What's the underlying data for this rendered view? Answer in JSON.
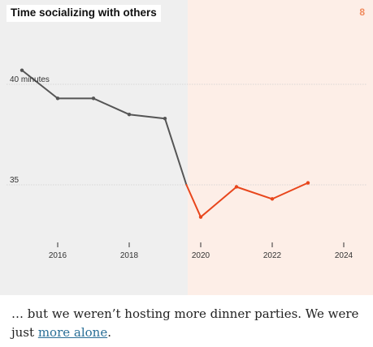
{
  "page_number": "8",
  "chart_data": {
    "type": "line",
    "title": "Time socializing with others",
    "x_ticks": [
      "2016",
      "2018",
      "2020",
      "2022",
      "2024"
    ],
    "y_ticks": [
      {
        "value": 40,
        "label": "40 minutes"
      },
      {
        "value": 35,
        "label": "35"
      }
    ],
    "xlim": [
      2015,
      2025
    ],
    "ylim": [
      32,
      43
    ],
    "series": [
      {
        "color": "#555555",
        "points": [
          [
            2015,
            40.7
          ],
          [
            2016,
            39.3
          ],
          [
            2017,
            39.3
          ],
          [
            2018,
            38.5
          ],
          [
            2019,
            38.3
          ],
          [
            2019.6,
            35.0
          ]
        ]
      },
      {
        "color": "#e8461c",
        "points": [
          [
            2019.6,
            35.0
          ],
          [
            2020,
            33.4
          ],
          [
            2021,
            34.9
          ],
          [
            2022,
            34.3
          ],
          [
            2023,
            35.1
          ]
        ]
      }
    ],
    "shaded_regions": [
      {
        "from": 2015,
        "to": 2019.6,
        "color": "#efefef"
      },
      {
        "from": 2019.6,
        "to": 2025,
        "color": "#fdeee7"
      }
    ]
  },
  "caption": {
    "text": "… but we weren’t hosting more dinner parties. We were just ",
    "link": "more alone",
    "end": "."
  }
}
